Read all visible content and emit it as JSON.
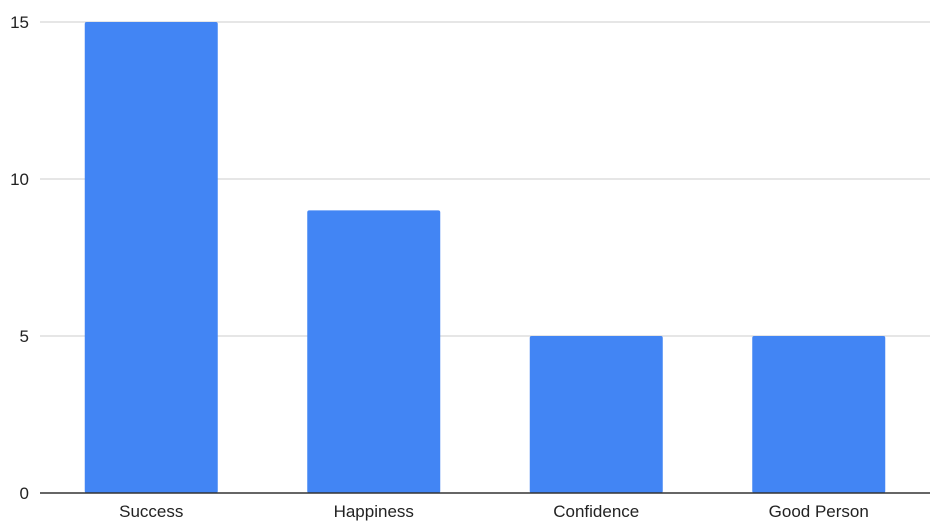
{
  "chart_data": {
    "type": "bar",
    "title": "",
    "xlabel": "",
    "ylabel": "",
    "categories": [
      "Success",
      "Happiness",
      "Confidence",
      "Good Person"
    ],
    "values": [
      15,
      9,
      5,
      5
    ],
    "ylim": [
      0,
      15
    ],
    "yticks": [
      "0",
      "5",
      "10",
      "15"
    ],
    "grid": true,
    "legend": "none",
    "colors": {
      "bar": "#4285f4",
      "grid": "#cccccc",
      "axis": "#333333",
      "text": "#222222"
    }
  }
}
